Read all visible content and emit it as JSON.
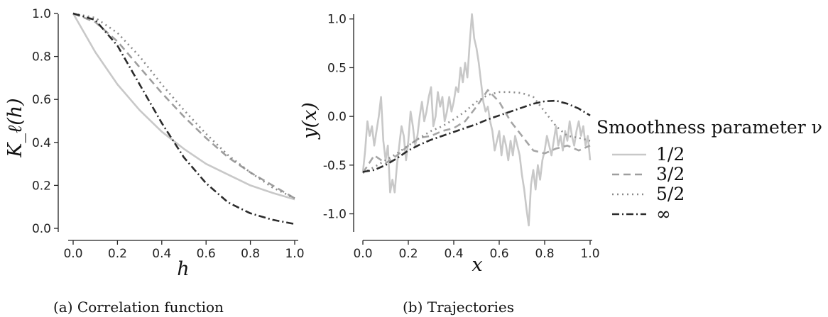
{
  "chart_data": [
    {
      "type": "line",
      "caption": "(a) Correlation function",
      "xlabel": "h",
      "ylabel": "K_ℓ(h)",
      "xlim": [
        0.0,
        1.0
      ],
      "ylim": [
        0.0,
        1.0
      ],
      "xticks": [
        "0.0",
        "0.2",
        "0.4",
        "0.6",
        "0.8",
        "1.0"
      ],
      "yticks": [
        "0.0",
        "0.2",
        "0.4",
        "0.6",
        "0.8",
        "1.0"
      ],
      "x": [
        0.0,
        0.1,
        0.2,
        0.3,
        0.4,
        0.5,
        0.6,
        0.7,
        0.8,
        0.9,
        1.0
      ],
      "series": [
        {
          "name": "1/2",
          "color": "#c8c8c8",
          "dash": "solid",
          "values": [
            1.0,
            0.82,
            0.67,
            0.55,
            0.45,
            0.37,
            0.3,
            0.25,
            0.2,
            0.165,
            0.135
          ]
        },
        {
          "name": "3/2",
          "color": "#9e9e9e",
          "dash": "dashed",
          "values": [
            1.0,
            0.96,
            0.87,
            0.75,
            0.63,
            0.52,
            0.42,
            0.33,
            0.26,
            0.2,
            0.14
          ]
        },
        {
          "name": "5/2",
          "color": "#8a8a8a",
          "dash": "dotted",
          "values": [
            1.0,
            0.98,
            0.91,
            0.8,
            0.67,
            0.55,
            0.44,
            0.34,
            0.26,
            0.19,
            0.14
          ]
        },
        {
          "name": "∞",
          "color": "#2b2b2b",
          "dash": "dashdot",
          "values": [
            1.0,
            0.97,
            0.85,
            0.67,
            0.49,
            0.33,
            0.21,
            0.12,
            0.07,
            0.04,
            0.02
          ]
        }
      ]
    },
    {
      "type": "line",
      "caption": "(b) Trajectories",
      "xlabel": "x",
      "ylabel": "y(x)",
      "xlim": [
        0.0,
        1.0
      ],
      "ylim": [
        -1.2,
        1.1
      ],
      "xticks": [
        "0.0",
        "0.2",
        "0.4",
        "0.6",
        "0.8",
        "1.0"
      ],
      "yticks": [
        "-1.0",
        "-0.5",
        "0.0",
        "0.5",
        "1.0"
      ],
      "series": [
        {
          "name": "1/2",
          "color": "#c8c8c8",
          "dash": "solid",
          "x": [
            0.0,
            0.01,
            0.02,
            0.03,
            0.04,
            0.05,
            0.06,
            0.07,
            0.08,
            0.09,
            0.1,
            0.11,
            0.12,
            0.13,
            0.14,
            0.15,
            0.16,
            0.17,
            0.18,
            0.19,
            0.2,
            0.21,
            0.22,
            0.23,
            0.24,
            0.25,
            0.26,
            0.27,
            0.28,
            0.29,
            0.3,
            0.31,
            0.32,
            0.33,
            0.34,
            0.35,
            0.36,
            0.37,
            0.38,
            0.39,
            0.4,
            0.41,
            0.42,
            0.43,
            0.44,
            0.45,
            0.46,
            0.47,
            0.48,
            0.49,
            0.5,
            0.51,
            0.52,
            0.53,
            0.54,
            0.55,
            0.56,
            0.57,
            0.58,
            0.59,
            0.6,
            0.61,
            0.62,
            0.63,
            0.64,
            0.65,
            0.66,
            0.67,
            0.68,
            0.69,
            0.7,
            0.71,
            0.72,
            0.73,
            0.74,
            0.75,
            0.76,
            0.77,
            0.78,
            0.79,
            0.8,
            0.81,
            0.82,
            0.83,
            0.84,
            0.85,
            0.86,
            0.87,
            0.88,
            0.89,
            0.9,
            0.91,
            0.92,
            0.93,
            0.94,
            0.95,
            0.96,
            0.97,
            0.98,
            0.99,
            1.0
          ],
          "values": [
            -0.58,
            -0.35,
            -0.05,
            -0.2,
            -0.1,
            -0.3,
            -0.15,
            0.0,
            0.2,
            -0.25,
            -0.45,
            -0.3,
            -0.78,
            -0.65,
            -0.78,
            -0.5,
            -0.3,
            -0.1,
            -0.2,
            -0.45,
            -0.25,
            0.05,
            -0.1,
            -0.3,
            -0.2,
            0.0,
            0.15,
            -0.05,
            0.05,
            0.2,
            0.3,
            -0.1,
            0.0,
            0.25,
            0.1,
            0.2,
            -0.05,
            0.05,
            0.2,
            0.05,
            0.15,
            0.3,
            0.25,
            0.5,
            0.35,
            0.55,
            0.4,
            0.75,
            1.05,
            0.8,
            0.7,
            0.55,
            0.35,
            0.15,
            0.05,
            0.1,
            -0.05,
            -0.15,
            -0.35,
            -0.25,
            -0.15,
            -0.4,
            -0.2,
            -0.3,
            -0.45,
            -0.25,
            -0.4,
            -0.2,
            -0.3,
            -0.4,
            -0.6,
            -0.75,
            -0.95,
            -1.12,
            -0.7,
            -0.55,
            -0.75,
            -0.5,
            -0.65,
            -0.45,
            -0.35,
            -0.2,
            -0.3,
            -0.4,
            -0.25,
            -0.1,
            -0.3,
            -0.2,
            -0.35,
            -0.15,
            -0.25,
            -0.05,
            -0.2,
            -0.3,
            -0.15,
            -0.05,
            -0.2,
            -0.1,
            -0.3,
            -0.2,
            -0.45
          ]
        },
        {
          "name": "3/2",
          "color": "#a5a5a5",
          "dash": "dashed",
          "x": [
            0.0,
            0.05,
            0.1,
            0.15,
            0.2,
            0.25,
            0.3,
            0.35,
            0.4,
            0.45,
            0.5,
            0.55,
            0.6,
            0.65,
            0.7,
            0.75,
            0.8,
            0.85,
            0.9,
            0.95,
            1.0
          ],
          "values": [
            -0.58,
            -0.4,
            -0.48,
            -0.4,
            -0.3,
            -0.22,
            -0.2,
            -0.15,
            -0.12,
            -0.05,
            0.1,
            0.27,
            0.15,
            -0.05,
            -0.2,
            -0.35,
            -0.38,
            -0.33,
            -0.3,
            -0.35,
            -0.3
          ]
        },
        {
          "name": "5/2",
          "color": "#8f8f8f",
          "dash": "dotted",
          "x": [
            0.0,
            0.05,
            0.1,
            0.15,
            0.2,
            0.25,
            0.3,
            0.35,
            0.4,
            0.45,
            0.5,
            0.55,
            0.6,
            0.65,
            0.7,
            0.75,
            0.8,
            0.85,
            0.9,
            0.95,
            1.0
          ],
          "values": [
            -0.58,
            -0.52,
            -0.45,
            -0.38,
            -0.3,
            -0.22,
            -0.15,
            -0.1,
            -0.03,
            0.05,
            0.15,
            0.22,
            0.25,
            0.25,
            0.24,
            0.2,
            0.05,
            -0.1,
            -0.2,
            -0.22,
            -0.25
          ]
        },
        {
          "name": "∞",
          "color": "#2b2b2b",
          "dash": "dashdot",
          "x": [
            0.0,
            0.05,
            0.1,
            0.15,
            0.2,
            0.25,
            0.3,
            0.35,
            0.4,
            0.45,
            0.5,
            0.55,
            0.6,
            0.65,
            0.7,
            0.75,
            0.8,
            0.85,
            0.9,
            0.95,
            1.0
          ],
          "values": [
            -0.57,
            -0.55,
            -0.5,
            -0.43,
            -0.35,
            -0.29,
            -0.24,
            -0.2,
            -0.16,
            -0.12,
            -0.08,
            -0.03,
            0.01,
            0.05,
            0.09,
            0.13,
            0.155,
            0.16,
            0.13,
            0.08,
            0.01
          ]
        }
      ]
    }
  ],
  "legend": {
    "title": "Smoothness parameter ν",
    "placement": "right",
    "entries": [
      "1/2",
      "3/2",
      "5/2",
      "∞"
    ]
  }
}
